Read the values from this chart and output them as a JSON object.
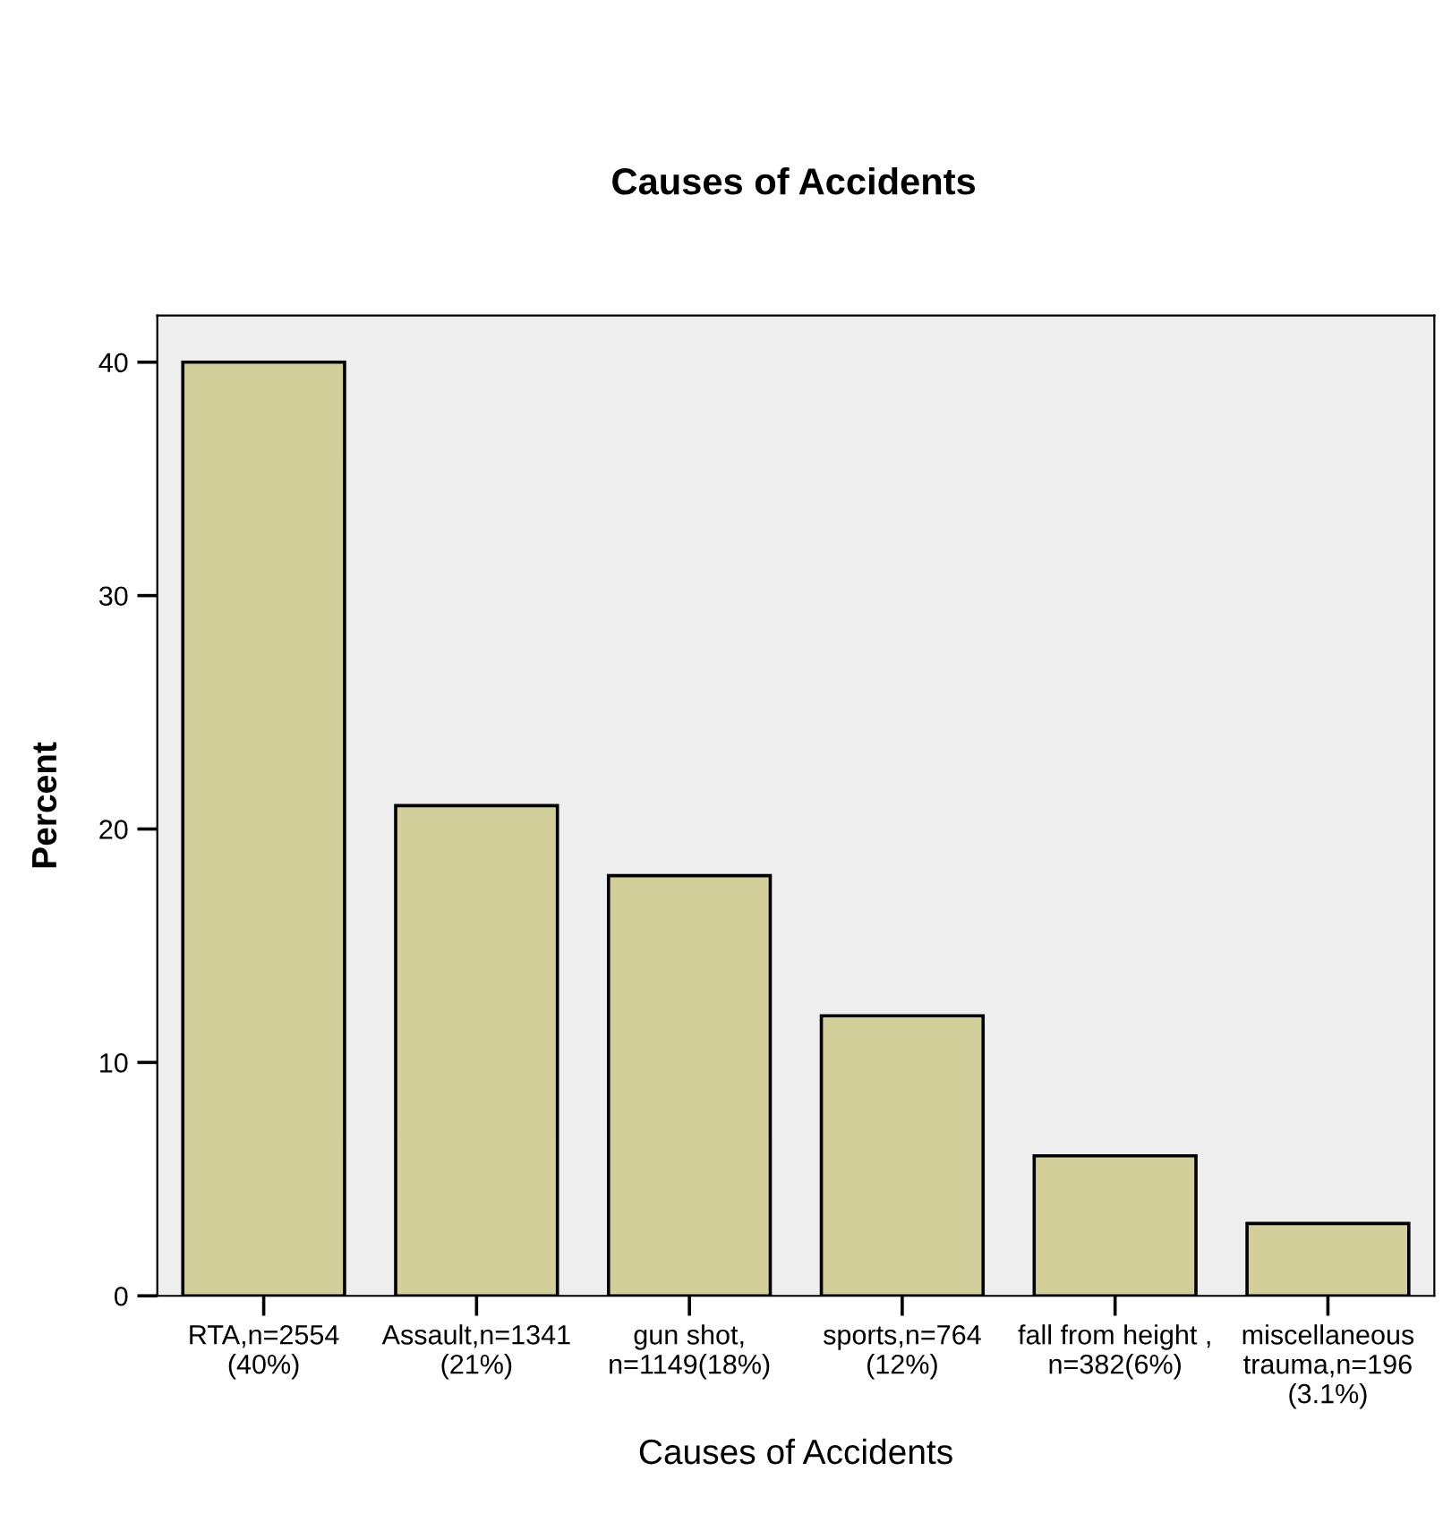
{
  "chart_data": {
    "type": "bar",
    "title": "Causes of Accidents",
    "xlabel": "Causes of Accidents",
    "ylabel": "Percent",
    "categories": [
      "RTA,n=2554\n(40%)",
      "Assault,n=1341\n(21%)",
      "gun shot,\nn=1149(18%)",
      "sports,n=764\n(12%)",
      "fall from height ,\nn=382(6%)",
      "miscellaneous\ntrauma,n=196\n(3.1%)"
    ],
    "values": [
      40,
      21,
      18,
      12,
      6,
      3.1
    ],
    "color": "#d3cf9a",
    "ylim": [
      0,
      42
    ],
    "yticks": [
      0,
      10,
      20,
      30,
      40
    ],
    "grid": false
  }
}
